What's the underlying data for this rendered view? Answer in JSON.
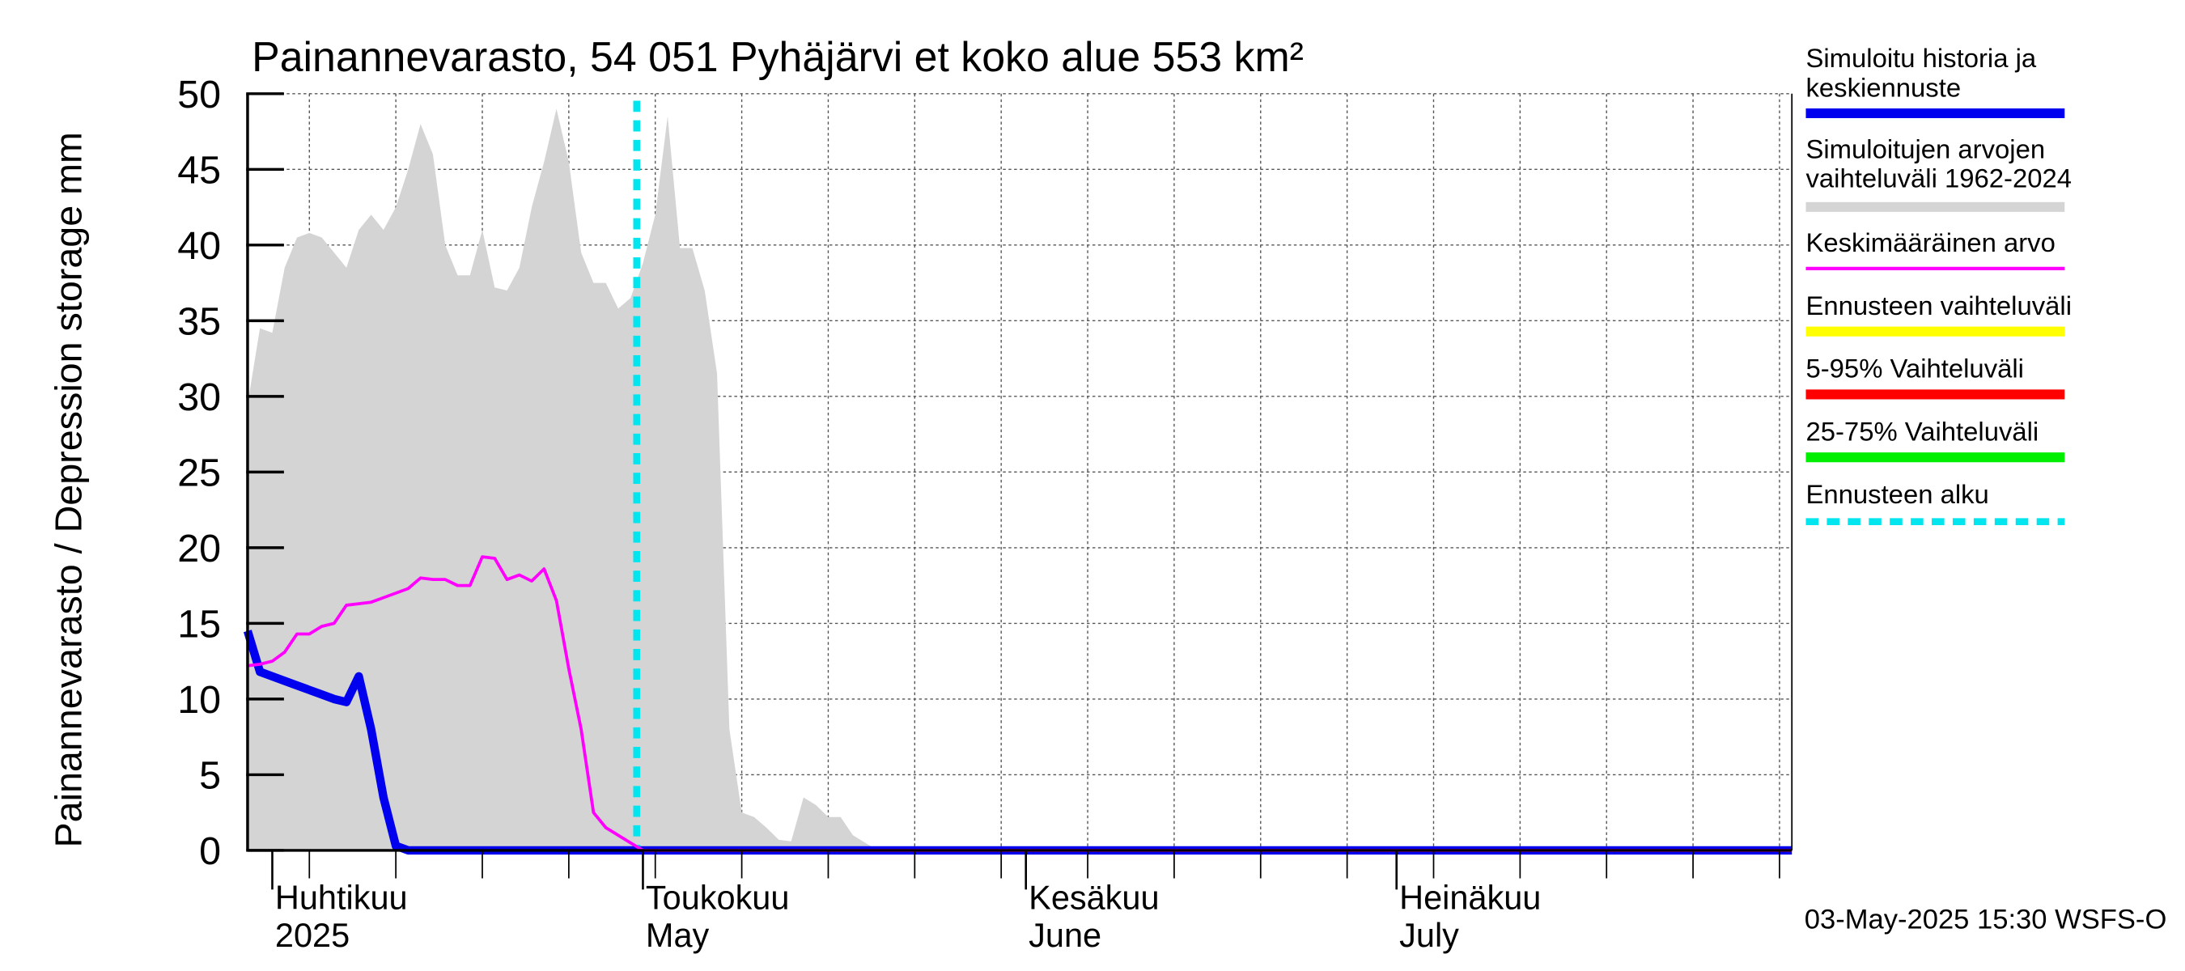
{
  "chart_data": {
    "type": "area",
    "title": "Painannevarasto, 54 051 Pyhäjärvi et koko alue 553 km²",
    "ylabel": "Painannevarasto / Depression storage    mm",
    "ylim": [
      0,
      50
    ],
    "yticks": [
      0,
      5,
      10,
      15,
      20,
      25,
      30,
      35,
      40,
      45,
      50
    ],
    "x_unit": "day of year 2025",
    "xlim": [
      89,
      214
    ],
    "month_labels": [
      {
        "fi": "Huhtikuu",
        "en": "2025",
        "day": 91
      },
      {
        "fi": "Toukokuu",
        "en": "May",
        "day": 121
      },
      {
        "fi": "Kesäkuu",
        "en": "June",
        "day": 152
      },
      {
        "fi": "Heinäkuu",
        "en": "July",
        "day": 182
      }
    ],
    "footer": "03-May-2025 15:30 WSFS-O",
    "forecast_start_day": 120.5,
    "colors": {
      "range": "#d4d4d4",
      "history": "#0000ee",
      "mean": "#ff00ff",
      "forecast_start": "#00e5ee",
      "ennuste": "#ffff00",
      "p5_95": "#ff0000",
      "p25_75": "#00ee00"
    },
    "legend": [
      {
        "label": "Simuloitu historia ja keskiennuste",
        "color": "#0000ee",
        "style": "thick"
      },
      {
        "label": "Simuloitujen arvojen vaihteluväli 1962-2024",
        "color": "#d4d4d4",
        "style": "thick"
      },
      {
        "label": "Keskimääräinen arvo",
        "color": "#ff00ff",
        "style": "thin"
      },
      {
        "label": "Ennusteen vaihteluväli",
        "color": "#ffff00",
        "style": "thick"
      },
      {
        "label": "5-95% Vaihteluväli",
        "color": "#ff0000",
        "style": "thick"
      },
      {
        "label": "25-75% Vaihteluväli",
        "color": "#00ee00",
        "style": "thick"
      },
      {
        "label": "Ennusteen alku",
        "color": "#00e5ee",
        "style": "dashed"
      }
    ],
    "series": [
      {
        "name": "Simulated range max 1962-2024",
        "x": [
          89,
          90,
          91,
          92,
          93,
          94,
          95,
          96,
          97,
          98,
          99,
          100,
          101,
          102,
          103,
          104,
          105,
          106,
          107,
          108,
          109,
          110,
          111,
          112,
          113,
          114,
          115,
          116,
          117,
          118,
          119,
          120,
          121,
          122,
          123,
          124,
          125,
          126,
          127,
          128,
          129,
          130,
          131,
          132,
          133,
          134,
          135,
          136,
          137,
          138,
          139,
          140,
          214
        ],
        "values": [
          29.5,
          34.5,
          34.2,
          38.5,
          40.5,
          40.8,
          40.5,
          39.5,
          38.5,
          41,
          42,
          41,
          42.5,
          45,
          48,
          46,
          40,
          38,
          38,
          41,
          37.2,
          37,
          38.5,
          42.5,
          45.5,
          49,
          45.5,
          39.5,
          37.5,
          37.5,
          35.8,
          36.5,
          38.8,
          42,
          48.5,
          39.8,
          39.8,
          37,
          31.5,
          8,
          2.5,
          2.2,
          1.5,
          0.7,
          0.6,
          3.5,
          3,
          2.2,
          2.2,
          1,
          0.5,
          0,
          0
        ]
      },
      {
        "name": "Keskimääräinen arvo",
        "x": [
          89,
          90,
          91,
          92,
          93,
          94,
          95,
          96,
          97,
          98,
          99,
          100,
          101,
          102,
          103,
          104,
          105,
          106,
          107,
          108,
          109,
          110,
          111,
          112,
          113,
          114,
          115,
          116,
          117,
          118,
          119,
          120,
          121,
          122,
          214
        ],
        "values": [
          12.2,
          12.3,
          12.5,
          13.1,
          14.3,
          14.3,
          14.8,
          15.0,
          16.2,
          16.3,
          16.4,
          16.7,
          17.0,
          17.3,
          18.0,
          17.9,
          17.9,
          17.5,
          17.5,
          19.4,
          19.3,
          17.9,
          18.2,
          17.8,
          18.6,
          16.5,
          12.0,
          8.0,
          2.5,
          1.5,
          1.0,
          0.5,
          0,
          0,
          0
        ]
      },
      {
        "name": "Simuloitu historia ja keskiennuste",
        "x": [
          89,
          90,
          91,
          92,
          93,
          94,
          95,
          96,
          97,
          98,
          99,
          100,
          101,
          102,
          103,
          104,
          214
        ],
        "values": [
          14.5,
          11.8,
          11.5,
          11.2,
          10.9,
          10.6,
          10.3,
          10.0,
          9.8,
          11.5,
          8.0,
          3.5,
          0.3,
          0.0,
          0.0,
          0.0,
          0.0
        ]
      }
    ]
  }
}
